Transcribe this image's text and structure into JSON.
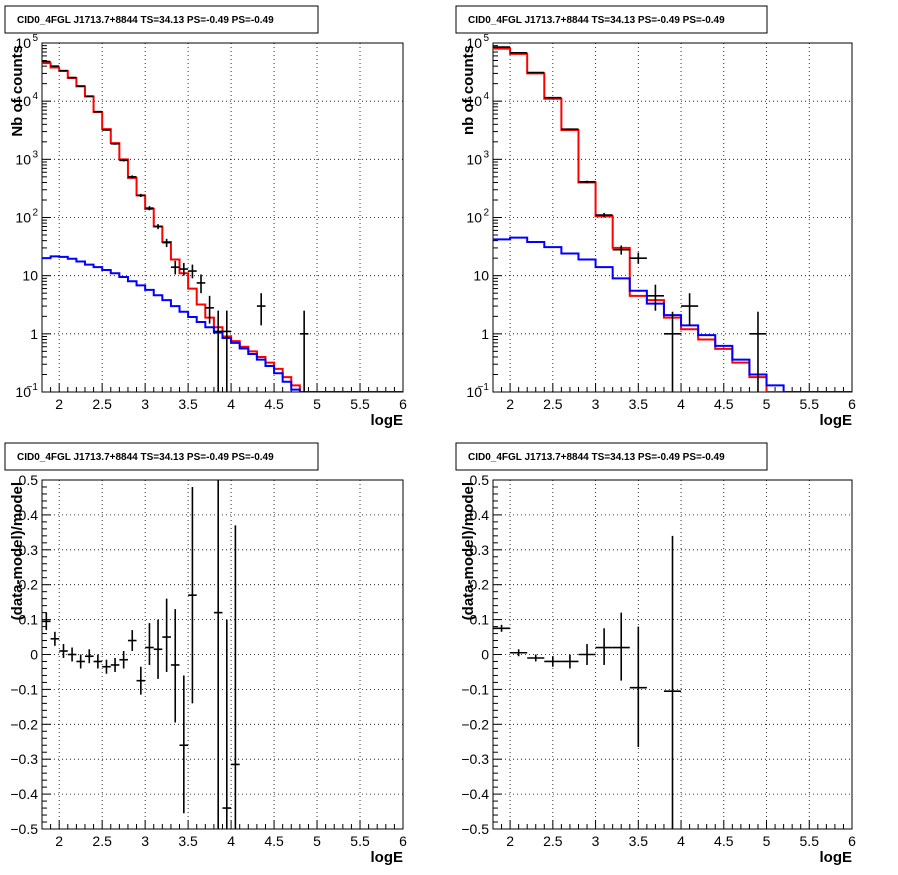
{
  "chart_data": [
    {
      "type": "line",
      "title": "CID0_4FGL J1713.7+8844 TS=34.13 PS=-0.49 PS=-0.49",
      "xlabel": "logE",
      "ylabel": "Nb of counts",
      "xlim": [
        1.8,
        6
      ],
      "ylim": [
        0.1,
        100000
      ],
      "yscale": "log",
      "grid": true,
      "xticks": [
        "2",
        "2.5",
        "3",
        "3.5",
        "4",
        "4.5",
        "5",
        "5.5",
        "6"
      ],
      "yticks": [
        {
          "base": "10",
          "exp": "−1",
          "v": 0.1
        },
        {
          "base": "1",
          "exp": "",
          "v": 1
        },
        {
          "base": "10",
          "exp": "",
          "v": 10
        },
        {
          "base": "10",
          "exp": "2",
          "v": 100
        },
        {
          "base": "10",
          "exp": "3",
          "v": 1000
        },
        {
          "base": "10",
          "exp": "4",
          "v": 10000
        },
        {
          "base": "10",
          "exp": "5",
          "v": 100000
        }
      ],
      "bin_edges": [
        1.8,
        1.9,
        2.0,
        2.1,
        2.2,
        2.3,
        2.4,
        2.5,
        2.6,
        2.7,
        2.8,
        2.9,
        3.0,
        3.1,
        3.2,
        3.3,
        3.4,
        3.5,
        3.6,
        3.7,
        3.8,
        3.9,
        4.0,
        4.1,
        4.2,
        4.3,
        4.4,
        4.5,
        4.6,
        4.7,
        4.8,
        4.9,
        5.0,
        5.1,
        5.2,
        5.3,
        5.4,
        5.5,
        5.6,
        5.7,
        5.8,
        5.9,
        6.0
      ],
      "series": [
        {
          "color": "#ff0000",
          "values": [
            45000,
            38000,
            33000,
            25000,
            18000,
            12000,
            6500,
            3300,
            1900,
            1000,
            480,
            240,
            140,
            70,
            38,
            19,
            11,
            6,
            3.2,
            1.9,
            1.3,
            0.9,
            0.75,
            0.6,
            0.5,
            0.4,
            0.32,
            0.25,
            0.18,
            0.13,
            0.1,
            0.1,
            0.1,
            0.1,
            0.1,
            0.1,
            0.1,
            0.1,
            0.1,
            0.1,
            0.1,
            0.1
          ]
        },
        {
          "color": "#0000ff",
          "values": [
            20,
            21.5,
            21,
            19.5,
            17.5,
            15.5,
            14,
            12.5,
            11,
            9.5,
            8,
            6.8,
            5.7,
            4.6,
            3.8,
            3,
            2.4,
            1.95,
            1.6,
            1.3,
            1.05,
            0.85,
            0.7,
            0.56,
            0.45,
            0.36,
            0.28,
            0.21,
            0.15,
            0.11,
            0.1,
            0.1,
            0.1,
            0.1,
            0.1,
            0.1,
            0.1,
            0.1,
            0.1,
            0.1,
            0.1,
            0.1
          ]
        }
      ],
      "points": [
        {
          "x": 1.85,
          "y": 48000,
          "ylo": 47500,
          "yhi": 48500
        },
        {
          "x": 1.95,
          "y": 40000,
          "ylo": 39500,
          "yhi": 40500
        },
        {
          "x": 2.05,
          "y": 33500,
          "ylo": 33000,
          "yhi": 34000
        },
        {
          "x": 2.15,
          "y": 25500,
          "ylo": 25000,
          "yhi": 26000
        },
        {
          "x": 2.25,
          "y": 18200,
          "ylo": 17900,
          "yhi": 18500
        },
        {
          "x": 2.35,
          "y": 12200,
          "ylo": 12000,
          "yhi": 12400
        },
        {
          "x": 2.45,
          "y": 6600,
          "ylo": 6450,
          "yhi": 6750
        },
        {
          "x": 2.55,
          "y": 3200,
          "ylo": 3100,
          "yhi": 3300
        },
        {
          "x": 2.65,
          "y": 1850,
          "ylo": 1780,
          "yhi": 1920
        },
        {
          "x": 2.75,
          "y": 960,
          "ylo": 920,
          "yhi": 1000
        },
        {
          "x": 2.85,
          "y": 500,
          "ylo": 470,
          "yhi": 530
        },
        {
          "x": 2.95,
          "y": 240,
          "ylo": 225,
          "yhi": 255
        },
        {
          "x": 3.05,
          "y": 145,
          "ylo": 133,
          "yhi": 157
        },
        {
          "x": 3.15,
          "y": 70,
          "ylo": 63,
          "yhi": 77
        },
        {
          "x": 3.25,
          "y": 37,
          "ylo": 31,
          "yhi": 43
        },
        {
          "x": 3.35,
          "y": 14,
          "ylo": 10.5,
          "yhi": 18
        },
        {
          "x": 3.45,
          "y": 13,
          "ylo": 10,
          "yhi": 16.5
        },
        {
          "x": 3.55,
          "y": 12,
          "ylo": 9,
          "yhi": 15.5
        },
        {
          "x": 3.65,
          "y": 7.5,
          "ylo": 5,
          "yhi": 10.5
        },
        {
          "x": 3.75,
          "y": 2.8,
          "ylo": 1.5,
          "yhi": 4.5
        },
        {
          "x": 3.85,
          "y": 1.1,
          "ylo": 0.1,
          "yhi": 2.5
        },
        {
          "x": 3.95,
          "y": 1.1,
          "ylo": 0.1,
          "yhi": 2.5
        },
        {
          "x": 4.35,
          "y": 3,
          "ylo": 1.4,
          "yhi": 5
        },
        {
          "x": 4.85,
          "y": 1,
          "ylo": 0.1,
          "yhi": 2.5
        }
      ]
    },
    {
      "type": "line",
      "title": "CID0_4FGL J1713.7+8844 TS=34.13 PS=-0.49 PS=-0.49",
      "xlabel": "logE",
      "ylabel": "nb of counts",
      "xlim": [
        1.8,
        6
      ],
      "ylim": [
        0.1,
        100000
      ],
      "yscale": "log",
      "grid": true,
      "xticks": [
        "2",
        "2.5",
        "3",
        "3.5",
        "4",
        "4.5",
        "5",
        "5.5",
        "6"
      ],
      "yticks": [
        {
          "base": "10",
          "exp": "−1",
          "v": 0.1
        },
        {
          "base": "1",
          "exp": "",
          "v": 1
        },
        {
          "base": "10",
          "exp": "",
          "v": 10
        },
        {
          "base": "10",
          "exp": "2",
          "v": 100
        },
        {
          "base": "10",
          "exp": "3",
          "v": 1000
        },
        {
          "base": "10",
          "exp": "4",
          "v": 10000
        },
        {
          "base": "10",
          "exp": "5",
          "v": 100000
        }
      ],
      "bin_edges": [
        1.8,
        2.0,
        2.2,
        2.4,
        2.6,
        2.8,
        3.0,
        3.2,
        3.4,
        3.6,
        3.8,
        4.0,
        4.2,
        4.4,
        4.6,
        4.8,
        5.0,
        5.2,
        5.4,
        5.6,
        5.8,
        6.0
      ],
      "series": [
        {
          "color": "#ff0000",
          "values": [
            80000,
            65000,
            30000,
            11000,
            3200,
            400,
            105,
            30,
            4.5,
            3.8,
            1.9,
            1.2,
            0.8,
            0.55,
            0.32,
            0.18,
            0.1,
            0.1,
            0.1,
            0.1,
            0.1
          ]
        },
        {
          "color": "#0000ff",
          "values": [
            42,
            45,
            38,
            31,
            24,
            19,
            14,
            9,
            5.5,
            3.3,
            2.1,
            1.4,
            0.95,
            0.62,
            0.36,
            0.2,
            0.13,
            0.1,
            0.1,
            0.1,
            0.1
          ]
        }
      ],
      "points": [
        {
          "x": 1.9,
          "y": 85000,
          "ylo": 84500,
          "yhi": 85500
        },
        {
          "x": 2.1,
          "y": 68000,
          "ylo": 67500,
          "yhi": 68500
        },
        {
          "x": 2.3,
          "y": 31000,
          "ylo": 30800,
          "yhi": 31200
        },
        {
          "x": 2.5,
          "y": 11500,
          "ylo": 11300,
          "yhi": 11700
        },
        {
          "x": 2.7,
          "y": 3300,
          "ylo": 3200,
          "yhi": 3400
        },
        {
          "x": 2.9,
          "y": 410,
          "ylo": 390,
          "yhi": 430
        },
        {
          "x": 3.1,
          "y": 110,
          "ylo": 100,
          "yhi": 120
        },
        {
          "x": 3.3,
          "y": 28,
          "ylo": 23,
          "yhi": 33
        },
        {
          "x": 3.5,
          "y": 20,
          "ylo": 16,
          "yhi": 25
        },
        {
          "x": 3.7,
          "y": 4.5,
          "ylo": 2.5,
          "yhi": 7
        },
        {
          "x": 3.9,
          "y": 1,
          "ylo": 0.1,
          "yhi": 2.4
        },
        {
          "x": 4.1,
          "y": 3,
          "ylo": 1.4,
          "yhi": 5
        },
        {
          "x": 4.9,
          "y": 1,
          "ylo": 0.1,
          "yhi": 2.4
        }
      ]
    },
    {
      "type": "scatter",
      "title": "CID0_4FGL J1713.7+8844 TS=34.13 PS=-0.49 PS=-0.49",
      "xlabel": "logE",
      "ylabel": "(data-model)/model",
      "xlim": [
        1.8,
        6
      ],
      "ylim": [
        -0.5,
        0.5
      ],
      "grid": true,
      "xticks": [
        "2",
        "2.5",
        "3",
        "3.5",
        "4",
        "4.5",
        "5",
        "5.5",
        "6"
      ],
      "yticks": [
        "−0.5",
        "−0.4",
        "−0.3",
        "−0.2",
        "−0.1",
        "0",
        "0.1",
        "0.2",
        "0.3",
        "0.4",
        "0.5"
      ],
      "points": [
        {
          "x": 1.85,
          "y": 0.095,
          "ylo": 0.07,
          "yhi": 0.12
        },
        {
          "x": 1.95,
          "y": 0.045,
          "ylo": 0.025,
          "yhi": 0.065
        },
        {
          "x": 2.05,
          "y": 0.01,
          "ylo": -0.01,
          "yhi": 0.03
        },
        {
          "x": 2.15,
          "y": 0.0,
          "ylo": -0.02,
          "yhi": 0.02
        },
        {
          "x": 2.25,
          "y": -0.02,
          "ylo": -0.04,
          "yhi": 0.0
        },
        {
          "x": 2.35,
          "y": -0.005,
          "ylo": -0.025,
          "yhi": 0.015
        },
        {
          "x": 2.45,
          "y": -0.02,
          "ylo": -0.04,
          "yhi": 0.0
        },
        {
          "x": 2.55,
          "y": -0.035,
          "ylo": -0.055,
          "yhi": -0.015
        },
        {
          "x": 2.65,
          "y": -0.03,
          "ylo": -0.05,
          "yhi": -0.01
        },
        {
          "x": 2.75,
          "y": -0.015,
          "ylo": -0.04,
          "yhi": 0.01
        },
        {
          "x": 2.85,
          "y": 0.04,
          "ylo": 0.01,
          "yhi": 0.07
        },
        {
          "x": 2.95,
          "y": -0.075,
          "ylo": -0.115,
          "yhi": -0.035
        },
        {
          "x": 3.05,
          "y": 0.02,
          "ylo": -0.03,
          "yhi": 0.09
        },
        {
          "x": 3.15,
          "y": 0.015,
          "ylo": -0.07,
          "yhi": 0.1
        },
        {
          "x": 3.25,
          "y": 0.05,
          "ylo": -0.05,
          "yhi": 0.16
        },
        {
          "x": 3.35,
          "y": -0.03,
          "ylo": -0.195,
          "yhi": 0.13
        },
        {
          "x": 3.45,
          "y": -0.26,
          "ylo": -0.455,
          "yhi": -0.06
        },
        {
          "x": 3.55,
          "y": 0.17,
          "ylo": -0.14,
          "yhi": 0.48
        },
        {
          "x": 3.85,
          "y": 0.12,
          "ylo": -0.5,
          "yhi": 0.5
        },
        {
          "x": 3.95,
          "y": -0.44,
          "ylo": -0.5,
          "yhi": 0.1
        },
        {
          "x": 4.05,
          "y": -0.315,
          "ylo": -0.5,
          "yhi": 0.37
        }
      ]
    },
    {
      "type": "scatter",
      "title": "CID0_4FGL J1713.7+8844 TS=34.13 PS=-0.49 PS=-0.49",
      "xlabel": "logE",
      "ylabel": "(data-model)/model",
      "xlim": [
        1.8,
        6
      ],
      "ylim": [
        -0.5,
        0.5
      ],
      "grid": true,
      "xticks": [
        "2",
        "2.5",
        "3",
        "3.5",
        "4",
        "4.5",
        "5",
        "5.5",
        "6"
      ],
      "yticks": [
        "−0.5",
        "−0.4",
        "−0.3",
        "−0.2",
        "−0.1",
        "0",
        "0.1",
        "0.2",
        "0.3",
        "0.4",
        "0.5"
      ],
      "points": [
        {
          "x": 1.9,
          "y": 0.075,
          "ylo": 0.065,
          "yhi": 0.085
        },
        {
          "x": 2.1,
          "y": 0.005,
          "ylo": -0.005,
          "yhi": 0.015
        },
        {
          "x": 2.3,
          "y": -0.01,
          "ylo": -0.02,
          "yhi": 0.0
        },
        {
          "x": 2.5,
          "y": -0.02,
          "ylo": -0.035,
          "yhi": -0.005
        },
        {
          "x": 2.7,
          "y": -0.02,
          "ylo": -0.04,
          "yhi": 0.0
        },
        {
          "x": 2.9,
          "y": 0.0,
          "ylo": -0.03,
          "yhi": 0.03
        },
        {
          "x": 3.1,
          "y": 0.02,
          "ylo": -0.03,
          "yhi": 0.075
        },
        {
          "x": 3.3,
          "y": 0.02,
          "ylo": -0.075,
          "yhi": 0.12
        },
        {
          "x": 3.5,
          "y": -0.095,
          "ylo": -0.265,
          "yhi": 0.08
        },
        {
          "x": 3.9,
          "y": -0.105,
          "ylo": -0.5,
          "yhi": 0.34
        }
      ],
      "xerr": 0.1
    }
  ]
}
